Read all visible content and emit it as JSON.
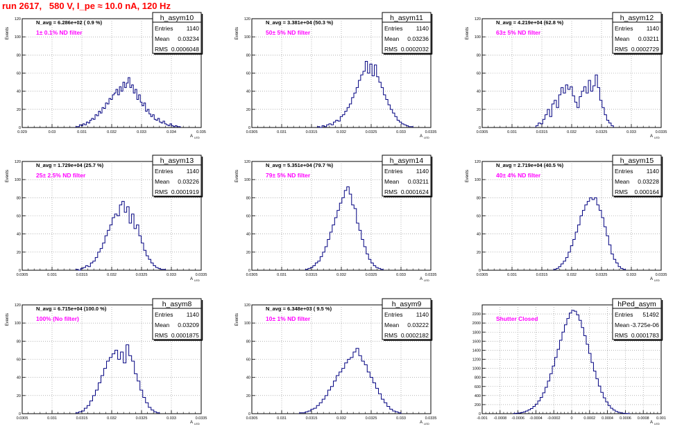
{
  "page_title": "run 2617,   580 V, I_pe ≈ 10.0 nA, 120 Hz",
  "chart_data": [
    {
      "type": "bar",
      "hist_name": "h_asym10",
      "xlabel": "A_LED",
      "ylabel": "Events",
      "xlim": [
        0.029,
        0.035
      ],
      "ylim": [
        0,
        120
      ],
      "xticks": [
        "0.029",
        "0.03",
        "0.031",
        "0.032",
        "0.033",
        "0.034",
        "0.035"
      ],
      "yticks": [
        "0",
        "20",
        "40",
        "60",
        "80",
        "100",
        "120"
      ],
      "stats": {
        "entries_label": "Entries",
        "entries": "1140",
        "mean_label": "Mean",
        "mean": "0.03234",
        "rms_label": "RMS",
        "rms": "0.0006048"
      },
      "navg": "N_avg = 6.286e+02 ( 0.9 %)",
      "filter_label": "1± 0.1% ND filter",
      "x_range": [
        0.0308,
        0.0343
      ],
      "values": [
        1,
        1,
        3,
        2,
        4,
        3,
        6,
        5,
        8,
        10,
        9,
        14,
        13,
        18,
        16,
        22,
        21,
        27,
        26,
        32,
        31,
        36,
        38,
        42,
        36,
        45,
        40,
        50,
        44,
        49,
        55,
        44,
        47,
        38,
        42,
        31,
        36,
        28,
        24,
        27,
        18,
        20,
        15,
        12,
        14,
        9,
        8,
        10,
        6,
        5,
        7,
        4,
        3,
        2,
        4,
        2,
        1,
        2,
        1,
        1
      ]
    },
    {
      "type": "bar",
      "hist_name": "h_asym11",
      "xlabel": "A_LED",
      "ylabel": "Events",
      "xlim": [
        0.0305,
        0.0335
      ],
      "ylim": [
        0,
        120
      ],
      "xticks": [
        "0.0305",
        "0.031",
        "0.0315",
        "0.032",
        "0.0325",
        "0.033",
        "0.0335"
      ],
      "yticks": [
        "0",
        "20",
        "40",
        "60",
        "80",
        "100",
        "120"
      ],
      "stats": {
        "entries_label": "Entries",
        "entries": "1140",
        "mean_label": "Mean",
        "mean": "0.03236",
        "rms_label": "RMS",
        "rms": "0.0002032"
      },
      "navg": "N_avg = 3.381e+04 (50.3 %)",
      "filter_label": "50± 5% ND filter",
      "x_range": [
        0.0316,
        0.0332
      ],
      "values": [
        1,
        0,
        2,
        1,
        3,
        4,
        3,
        6,
        8,
        7,
        12,
        14,
        18,
        22,
        26,
        33,
        38,
        44,
        52,
        58,
        62,
        73,
        60,
        70,
        57,
        69,
        56,
        50,
        44,
        36,
        31,
        25,
        20,
        16,
        12,
        8,
        6,
        4,
        3,
        2,
        1,
        1
      ]
    },
    {
      "type": "bar",
      "hist_name": "h_asym12",
      "xlabel": "A_LED",
      "ylabel": "Events",
      "xlim": [
        0.0305,
        0.0335
      ],
      "ylim": [
        0,
        120
      ],
      "xticks": [
        "0.0305",
        "0.031",
        "0.0315",
        "0.032",
        "0.0325",
        "0.033",
        "0.0335"
      ],
      "yticks": [
        "0",
        "20",
        "40",
        "60",
        "80",
        "100",
        "120"
      ],
      "stats": {
        "entries_label": "Entries",
        "entries": "1140",
        "mean_label": "Mean",
        "mean": "0.03211",
        "rms_label": "RMS",
        "rms": "0.0002729"
      },
      "navg": "N_avg = 4.219e+04 (62.8 %)",
      "filter_label": "63± 5% ND filter",
      "x_range": [
        0.0314,
        0.0327
      ],
      "values": [
        2,
        5,
        4,
        9,
        14,
        20,
        12,
        26,
        30,
        22,
        36,
        44,
        38,
        47,
        42,
        45,
        35,
        28,
        22,
        34,
        40,
        45,
        38,
        52,
        40,
        46,
        58,
        44,
        30,
        22,
        14,
        8,
        5,
        2
      ]
    },
    {
      "type": "bar",
      "hist_name": "h_asym13",
      "xlabel": "A_LED",
      "ylabel": "Events",
      "xlim": [
        0.0305,
        0.0335
      ],
      "ylim": [
        0,
        120
      ],
      "xticks": [
        "0.0305",
        "0.031",
        "0.0315",
        "0.032",
        "0.0325",
        "0.033",
        "0.0335"
      ],
      "yticks": [
        "0",
        "20",
        "40",
        "60",
        "80",
        "100",
        "120"
      ],
      "stats": {
        "entries_label": "Entries",
        "entries": "1140",
        "mean_label": "Mean",
        "mean": "0.03226",
        "rms_label": "RMS",
        "rms": "0.0001919"
      },
      "navg": "N_avg = 1.729e+04 (25.7 %)",
      "filter_label": "25± 2.5% ND filter",
      "x_range": [
        0.0314,
        0.0329
      ],
      "values": [
        1,
        0,
        2,
        3,
        5,
        4,
        8,
        10,
        14,
        20,
        24,
        30,
        38,
        44,
        50,
        58,
        62,
        60,
        72,
        76,
        64,
        70,
        52,
        62,
        46,
        50,
        38,
        30,
        22,
        16,
        12,
        8,
        5,
        3,
        2,
        1,
        1
      ]
    },
    {
      "type": "bar",
      "hist_name": "h_asym14",
      "xlabel": "A_LED",
      "ylabel": "Events",
      "xlim": [
        0.0305,
        0.0335
      ],
      "ylim": [
        0,
        120
      ],
      "xticks": [
        "0.0305",
        "0.031",
        "0.0315",
        "0.032",
        "0.0325",
        "0.033",
        "0.0335"
      ],
      "yticks": [
        "0",
        "20",
        "40",
        "60",
        "80",
        "100",
        "120"
      ],
      "stats": {
        "entries_label": "Entries",
        "entries": "1140",
        "mean_label": "Mean",
        "mean": "0.03211",
        "rms_label": "RMS",
        "rms": "0.0001624"
      },
      "navg": "N_avg = 5.351e+04 (79.7 %)",
      "filter_label": "79± 5% ND filter",
      "x_range": [
        0.0314,
        0.0327
      ],
      "values": [
        1,
        2,
        3,
        5,
        8,
        10,
        15,
        20,
        26,
        34,
        42,
        50,
        58,
        66,
        74,
        80,
        88,
        92,
        84,
        72,
        68,
        52,
        44,
        34,
        26,
        18,
        12,
        8,
        5,
        3,
        2,
        1
      ]
    },
    {
      "type": "bar",
      "hist_name": "h_asym15",
      "xlabel": "A_LED",
      "ylabel": "Events",
      "xlim": [
        0.0305,
        0.0335
      ],
      "ylim": [
        0,
        120
      ],
      "xticks": [
        "0.0305",
        "0.031",
        "0.0315",
        "0.032",
        "0.0325",
        "0.033",
        "0.0335"
      ],
      "yticks": [
        "0",
        "20",
        "40",
        "60",
        "80",
        "100",
        "120"
      ],
      "stats": {
        "entries_label": "Entries",
        "entries": "1140",
        "mean_label": "Mean",
        "mean": "0.03228",
        "rms_label": "RMS",
        "rms": "0.000164"
      },
      "navg": "N_avg = 2.719e+04 (40.5 %)",
      "filter_label": "40± 4% ND filter",
      "x_range": [
        0.0317,
        0.0329
      ],
      "values": [
        1,
        2,
        4,
        7,
        10,
        14,
        20,
        27,
        34,
        42,
        50,
        60,
        66,
        72,
        76,
        80,
        78,
        80,
        72,
        66,
        58,
        48,
        38,
        28,
        18,
        12,
        8,
        4,
        2,
        1
      ]
    },
    {
      "type": "bar",
      "hist_name": "h_asym8",
      "xlabel": "A_LED",
      "ylabel": "Events",
      "xlim": [
        0.0305,
        0.0335
      ],
      "ylim": [
        0,
        120
      ],
      "xticks": [
        "0.0305",
        "0.031",
        "0.0315",
        "0.032",
        "0.0325",
        "0.033",
        "0.0335"
      ],
      "yticks": [
        "0",
        "20",
        "40",
        "60",
        "80",
        "100",
        "120"
      ],
      "stats": {
        "entries_label": "Entries",
        "entries": "1140",
        "mean_label": "Mean",
        "mean": "0.03209",
        "rms_label": "RMS",
        "rms": "0.0001875"
      },
      "navg": "N_avg = 6.715e+04 (100.0 %)",
      "filter_label": "100% (No filter)",
      "x_range": [
        0.0314,
        0.0328
      ],
      "values": [
        1,
        2,
        3,
        6,
        9,
        14,
        20,
        26,
        34,
        42,
        50,
        58,
        62,
        66,
        70,
        60,
        68,
        56,
        76,
        64,
        58,
        44,
        36,
        26,
        18,
        12,
        7,
        4,
        2,
        1
      ]
    },
    {
      "type": "bar",
      "hist_name": "h_asym9",
      "xlabel": "A_LED",
      "ylabel": "Events",
      "xlim": [
        0.0305,
        0.0335
      ],
      "ylim": [
        0,
        120
      ],
      "xticks": [
        "0.0305",
        "0.031",
        "0.0315",
        "0.032",
        "0.0325",
        "0.033",
        "0.0335"
      ],
      "yticks": [
        "0",
        "20",
        "40",
        "60",
        "80",
        "100",
        "120"
      ],
      "stats": {
        "entries_label": "Entries",
        "entries": "1140",
        "mean_label": "Mean",
        "mean": "0.03222",
        "rms_label": "RMS",
        "rms": "0.0002182"
      },
      "navg": "N_avg = 6.348e+03 ( 9.5 %)",
      "filter_label": "10± 1% ND filter",
      "x_range": [
        0.0313,
        0.033
      ],
      "values": [
        1,
        1,
        2,
        3,
        5,
        6,
        9,
        12,
        16,
        20,
        26,
        30,
        36,
        42,
        46,
        50,
        56,
        60,
        62,
        68,
        72,
        64,
        58,
        54,
        46,
        40,
        34,
        28,
        22,
        16,
        12,
        8,
        5,
        3,
        2,
        1
      ]
    },
    {
      "type": "bar",
      "hist_name": "hPed_asym",
      "xlabel": "A_LED",
      "ylabel": "",
      "xlim": [
        -0.001,
        0.001
      ],
      "ylim": [
        0,
        2400
      ],
      "xticks": [
        "-0.001",
        "-0.0008",
        "-0.0006",
        "-0.0004",
        "-0.0002",
        "0",
        "0.0002",
        "0.0004",
        "0.0006",
        "0.0008",
        "0.001"
      ],
      "yticks": [
        "0",
        "200",
        "400",
        "600",
        "800",
        "1000",
        "1200",
        "1400",
        "1600",
        "1800",
        "2000",
        "2200"
      ],
      "stats": {
        "entries_label": "Entries",
        "entries": "51492",
        "mean_label": "Mean",
        "mean": "-3.725e-06",
        "rms_label": "RMS",
        "rms": "0.0001783"
      },
      "navg": "",
      "filter_label": "Shutter Closed",
      "x_range": [
        -0.00065,
        0.00065
      ],
      "values": [
        5,
        10,
        15,
        25,
        40,
        60,
        85,
        115,
        160,
        210,
        280,
        360,
        460,
        580,
        720,
        880,
        1050,
        1240,
        1420,
        1620,
        1800,
        1960,
        2100,
        2220,
        2280,
        2260,
        2180,
        2060,
        1900,
        1720,
        1530,
        1330,
        1130,
        940,
        770,
        610,
        470,
        350,
        260,
        180,
        120,
        80,
        50,
        30,
        18,
        10,
        5,
        2
      ]
    }
  ]
}
